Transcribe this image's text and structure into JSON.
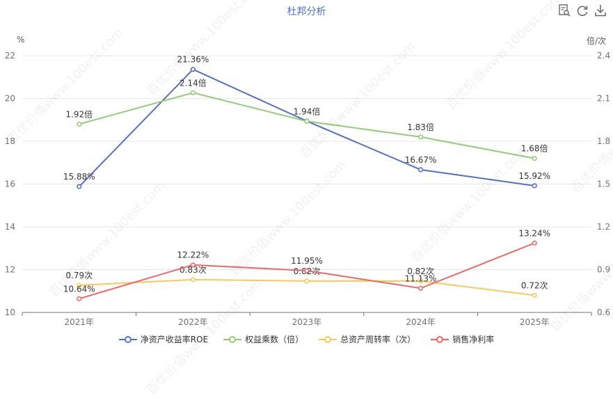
{
  "toolbar": {
    "icons": [
      "data-view-icon",
      "restore-icon",
      "download-icon"
    ]
  },
  "watermark_text": "百优价值www.100est.com",
  "chart_data": {
    "type": "line",
    "title": "杜邦分析",
    "y_left": {
      "unit_label": "%",
      "ylim": [
        10,
        22
      ],
      "ticks": [
        10,
        12,
        14,
        16,
        18,
        20,
        22
      ]
    },
    "y_right": {
      "unit_label": "倍/次",
      "ylim": [
        0.6,
        2.4
      ],
      "ticks": [
        "0.6",
        "0.9",
        "1.2",
        "1.5",
        "1.8",
        "2.1",
        "2.4"
      ]
    },
    "categories": [
      "2021年",
      "2022年",
      "2023年",
      "2024年",
      "2025年"
    ],
    "grid": true,
    "legend_position": "bottom",
    "series": [
      {
        "name": "净资产收益率ROE",
        "axis": "left",
        "color": "#5470c6",
        "values": [
          15.88,
          21.36,
          18.94,
          16.67,
          15.92
        ],
        "labels": [
          "15.88%",
          "21.36%",
          "",
          "16.67%",
          "15.92%"
        ],
        "label_pos": [
          "above",
          "above",
          "above",
          "above",
          "above"
        ]
      },
      {
        "name": "权益乘数（倍）",
        "axis": "right",
        "color": "#91cc75",
        "values": [
          1.92,
          2.14,
          1.94,
          1.83,
          1.68
        ],
        "labels": [
          "1.92倍",
          "2.14倍",
          "1.94倍",
          "1.83倍",
          "1.68倍"
        ],
        "label_pos": [
          "above",
          "above",
          "above",
          "above",
          "above"
        ]
      },
      {
        "name": "总资产周转率（次）",
        "axis": "right",
        "color": "#fac858",
        "values": [
          0.79,
          0.83,
          0.82,
          0.82,
          0.72
        ],
        "labels": [
          "0.79次",
          "0.83次",
          "0.82次",
          "0.82次",
          "0.72次"
        ],
        "label_pos": [
          "above",
          "above",
          "above",
          "above",
          "above"
        ]
      },
      {
        "name": "销售净利率",
        "axis": "left",
        "color": "#ee6666",
        "values": [
          10.64,
          12.22,
          11.95,
          11.13,
          13.24
        ],
        "labels": [
          "10.64%",
          "12.22%",
          "11.95%",
          "11.13%",
          "13.24%"
        ],
        "label_pos": [
          "above",
          "above",
          "above",
          "above",
          "above"
        ]
      }
    ]
  }
}
